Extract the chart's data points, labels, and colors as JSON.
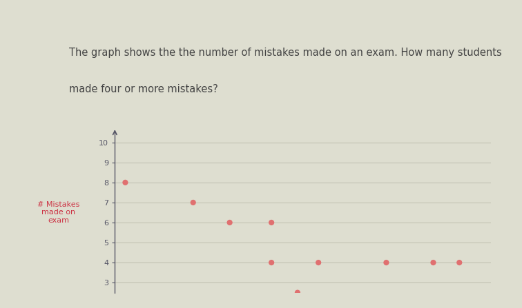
{
  "title_line1": "The graph shows the the number of mistakes made on an exam. How many students",
  "title_line2": "made four or more mistakes?",
  "ylabel": "# Mistakes\nmade on\nexam",
  "ylim": [
    2.5,
    10.5
  ],
  "xlim": [
    0.3,
    7.5
  ],
  "yticks": [
    3,
    4,
    5,
    6,
    7,
    8,
    9,
    10
  ],
  "points_x": [
    0.5,
    1.8,
    2.5,
    3.3,
    3.3,
    4.2,
    5.5,
    6.4,
    6.9,
    3.8
  ],
  "points_y": [
    8,
    7,
    6,
    6,
    4,
    4,
    4,
    4,
    4,
    2.5
  ],
  "dot_color": "#e07070",
  "dot_size": 35,
  "bg_color": "#deded0",
  "top_bg_color": "#d8d8cc",
  "grid_color": "#b8b8a8",
  "title_color": "#444444",
  "ylabel_color": "#cc3344",
  "axis_color": "#555566",
  "tick_color": "#555566",
  "tick_fontsize": 8
}
